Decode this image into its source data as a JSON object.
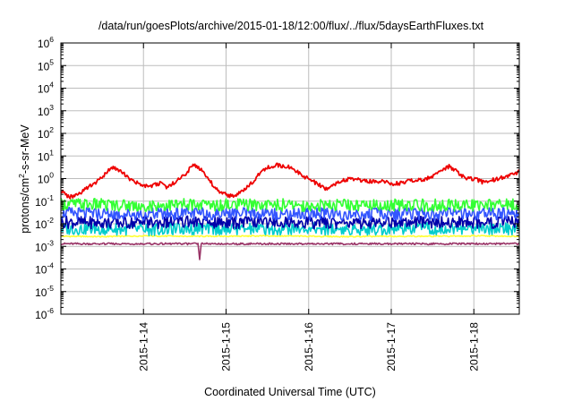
{
  "chart_data": {
    "type": "line",
    "title": "/data/run/goesPlots/archive/2015-01-18/12:00/flux/../flux/5daysEarthFluxes.txt",
    "xlabel": "Coordinated Universal Time (UTC)",
    "ylabel": {
      "base": "protons/cm",
      "sup": "2",
      "rest": "-s-sr-MeV"
    },
    "yscale": "log",
    "ylim": [
      1e-06,
      1000000.0
    ],
    "xlim": [
      13.0,
      18.55
    ],
    "x_ticks": [
      {
        "x": 14,
        "label": "2015-1-14"
      },
      {
        "x": 15,
        "label": "2015-1-15"
      },
      {
        "x": 16,
        "label": "2015-1-16"
      },
      {
        "x": 17,
        "label": "2015-1-17"
      },
      {
        "x": 18,
        "label": "2015-1-18"
      }
    ],
    "y_ticks": [
      {
        "exp": -6,
        "base": "10",
        "sup": "-6"
      },
      {
        "exp": -5,
        "base": "10",
        "sup": "-5"
      },
      {
        "exp": -4,
        "base": "10",
        "sup": "-4"
      },
      {
        "exp": -3,
        "base": "10",
        "sup": "-3"
      },
      {
        "exp": -2,
        "base": "10",
        "sup": "-2"
      },
      {
        "exp": -1,
        "base": "10",
        "sup": "-1"
      },
      {
        "exp": 0,
        "base": "10",
        "sup": "0"
      },
      {
        "exp": 1,
        "base": "10",
        "sup": "1"
      },
      {
        "exp": 2,
        "base": "10",
        "sup": "2"
      },
      {
        "exp": 3,
        "base": "10",
        "sup": "3"
      },
      {
        "exp": 4,
        "base": "10",
        "sup": "4"
      },
      {
        "exp": 5,
        "base": "10",
        "sup": "5"
      },
      {
        "exp": 6,
        "base": "10",
        "sup": "6"
      }
    ],
    "grid": true,
    "legend": "none",
    "series": [
      {
        "color": "#ffff33",
        "x": [
          13.0,
          13.5,
          14.0,
          14.5,
          15.0,
          15.5,
          16.0,
          16.5,
          17.0,
          17.5,
          18.0,
          18.55
        ],
        "y": [
          0.0028,
          0.0027,
          0.0029,
          0.0028,
          0.0028,
          0.0029,
          0.0028,
          0.0027,
          0.0028,
          0.0028,
          0.0029,
          0.0028
        ]
      },
      {
        "color": "#993366",
        "x": [
          13.0,
          13.5,
          14.0,
          14.5,
          14.66,
          14.68,
          14.7,
          15.0,
          15.5,
          16.0,
          16.5,
          17.0,
          17.5,
          18.0,
          18.55
        ],
        "y": [
          0.0013,
          0.0013,
          0.0013,
          0.0013,
          0.0013,
          0.00025,
          0.0013,
          0.0013,
          0.0013,
          0.0013,
          0.0013,
          0.0013,
          0.0013,
          0.0013,
          0.0013
        ]
      },
      {
        "color": "#00cccc",
        "x": [
          13.0,
          13.5,
          14.0,
          14.5,
          15.0,
          15.5,
          16.0,
          16.5,
          17.0,
          17.5,
          18.0,
          18.55
        ],
        "y": [
          0.006,
          0.006,
          0.0055,
          0.006,
          0.006,
          0.0058,
          0.006,
          0.0058,
          0.006,
          0.006,
          0.0058,
          0.006
        ]
      },
      {
        "color": "#0000aa",
        "x": [
          13.0,
          13.5,
          14.0,
          14.5,
          15.0,
          15.5,
          16.0,
          16.5,
          17.0,
          17.5,
          18.0,
          18.55
        ],
        "y": [
          0.012,
          0.011,
          0.011,
          0.012,
          0.011,
          0.012,
          0.011,
          0.011,
          0.012,
          0.011,
          0.012,
          0.011
        ]
      },
      {
        "color": "#3355ff",
        "x": [
          13.0,
          13.5,
          14.0,
          14.5,
          15.0,
          15.5,
          16.0,
          16.5,
          17.0,
          17.5,
          18.0,
          18.55
        ],
        "y": [
          0.03,
          0.028,
          0.027,
          0.028,
          0.028,
          0.027,
          0.028,
          0.026,
          0.027,
          0.027,
          0.028,
          0.027
        ]
      },
      {
        "color": "#33ff33",
        "x": [
          13.0,
          13.5,
          14.0,
          14.5,
          15.0,
          15.5,
          16.0,
          16.5,
          17.0,
          17.5,
          18.0,
          18.55
        ],
        "y": [
          0.075,
          0.07,
          0.065,
          0.07,
          0.068,
          0.07,
          0.065,
          0.068,
          0.066,
          0.067,
          0.068,
          0.07
        ]
      },
      {
        "color": "#ee0000",
        "x": [
          13.0,
          13.1,
          13.2,
          13.3,
          13.4,
          13.5,
          13.6,
          13.7,
          13.8,
          13.9,
          14.0,
          14.1,
          14.2,
          14.3,
          14.4,
          14.5,
          14.6,
          14.7,
          14.8,
          14.9,
          15.0,
          15.1,
          15.2,
          15.3,
          15.4,
          15.5,
          15.6,
          15.7,
          15.8,
          15.9,
          16.0,
          16.1,
          16.2,
          16.3,
          16.4,
          16.5,
          16.6,
          16.7,
          16.8,
          16.9,
          17.0,
          17.1,
          17.2,
          17.3,
          17.4,
          17.5,
          17.6,
          17.7,
          17.8,
          17.9,
          18.0,
          18.1,
          18.2,
          18.3,
          18.4,
          18.55
        ],
        "y": [
          0.3,
          0.15,
          0.2,
          0.35,
          0.6,
          1.2,
          3.0,
          2.5,
          1.2,
          0.7,
          0.5,
          0.5,
          0.6,
          0.4,
          0.8,
          1.5,
          4.0,
          2.5,
          0.8,
          0.3,
          0.2,
          0.15,
          0.3,
          0.6,
          1.5,
          3.0,
          4.0,
          3.5,
          3.0,
          1.5,
          1.0,
          0.6,
          0.35,
          0.5,
          0.8,
          1.0,
          0.9,
          0.8,
          0.7,
          0.8,
          0.6,
          0.6,
          0.8,
          0.9,
          0.9,
          1.2,
          2.0,
          3.5,
          2.0,
          1.0,
          1.0,
          0.7,
          0.8,
          1.0,
          1.3,
          2.0
        ]
      }
    ]
  }
}
